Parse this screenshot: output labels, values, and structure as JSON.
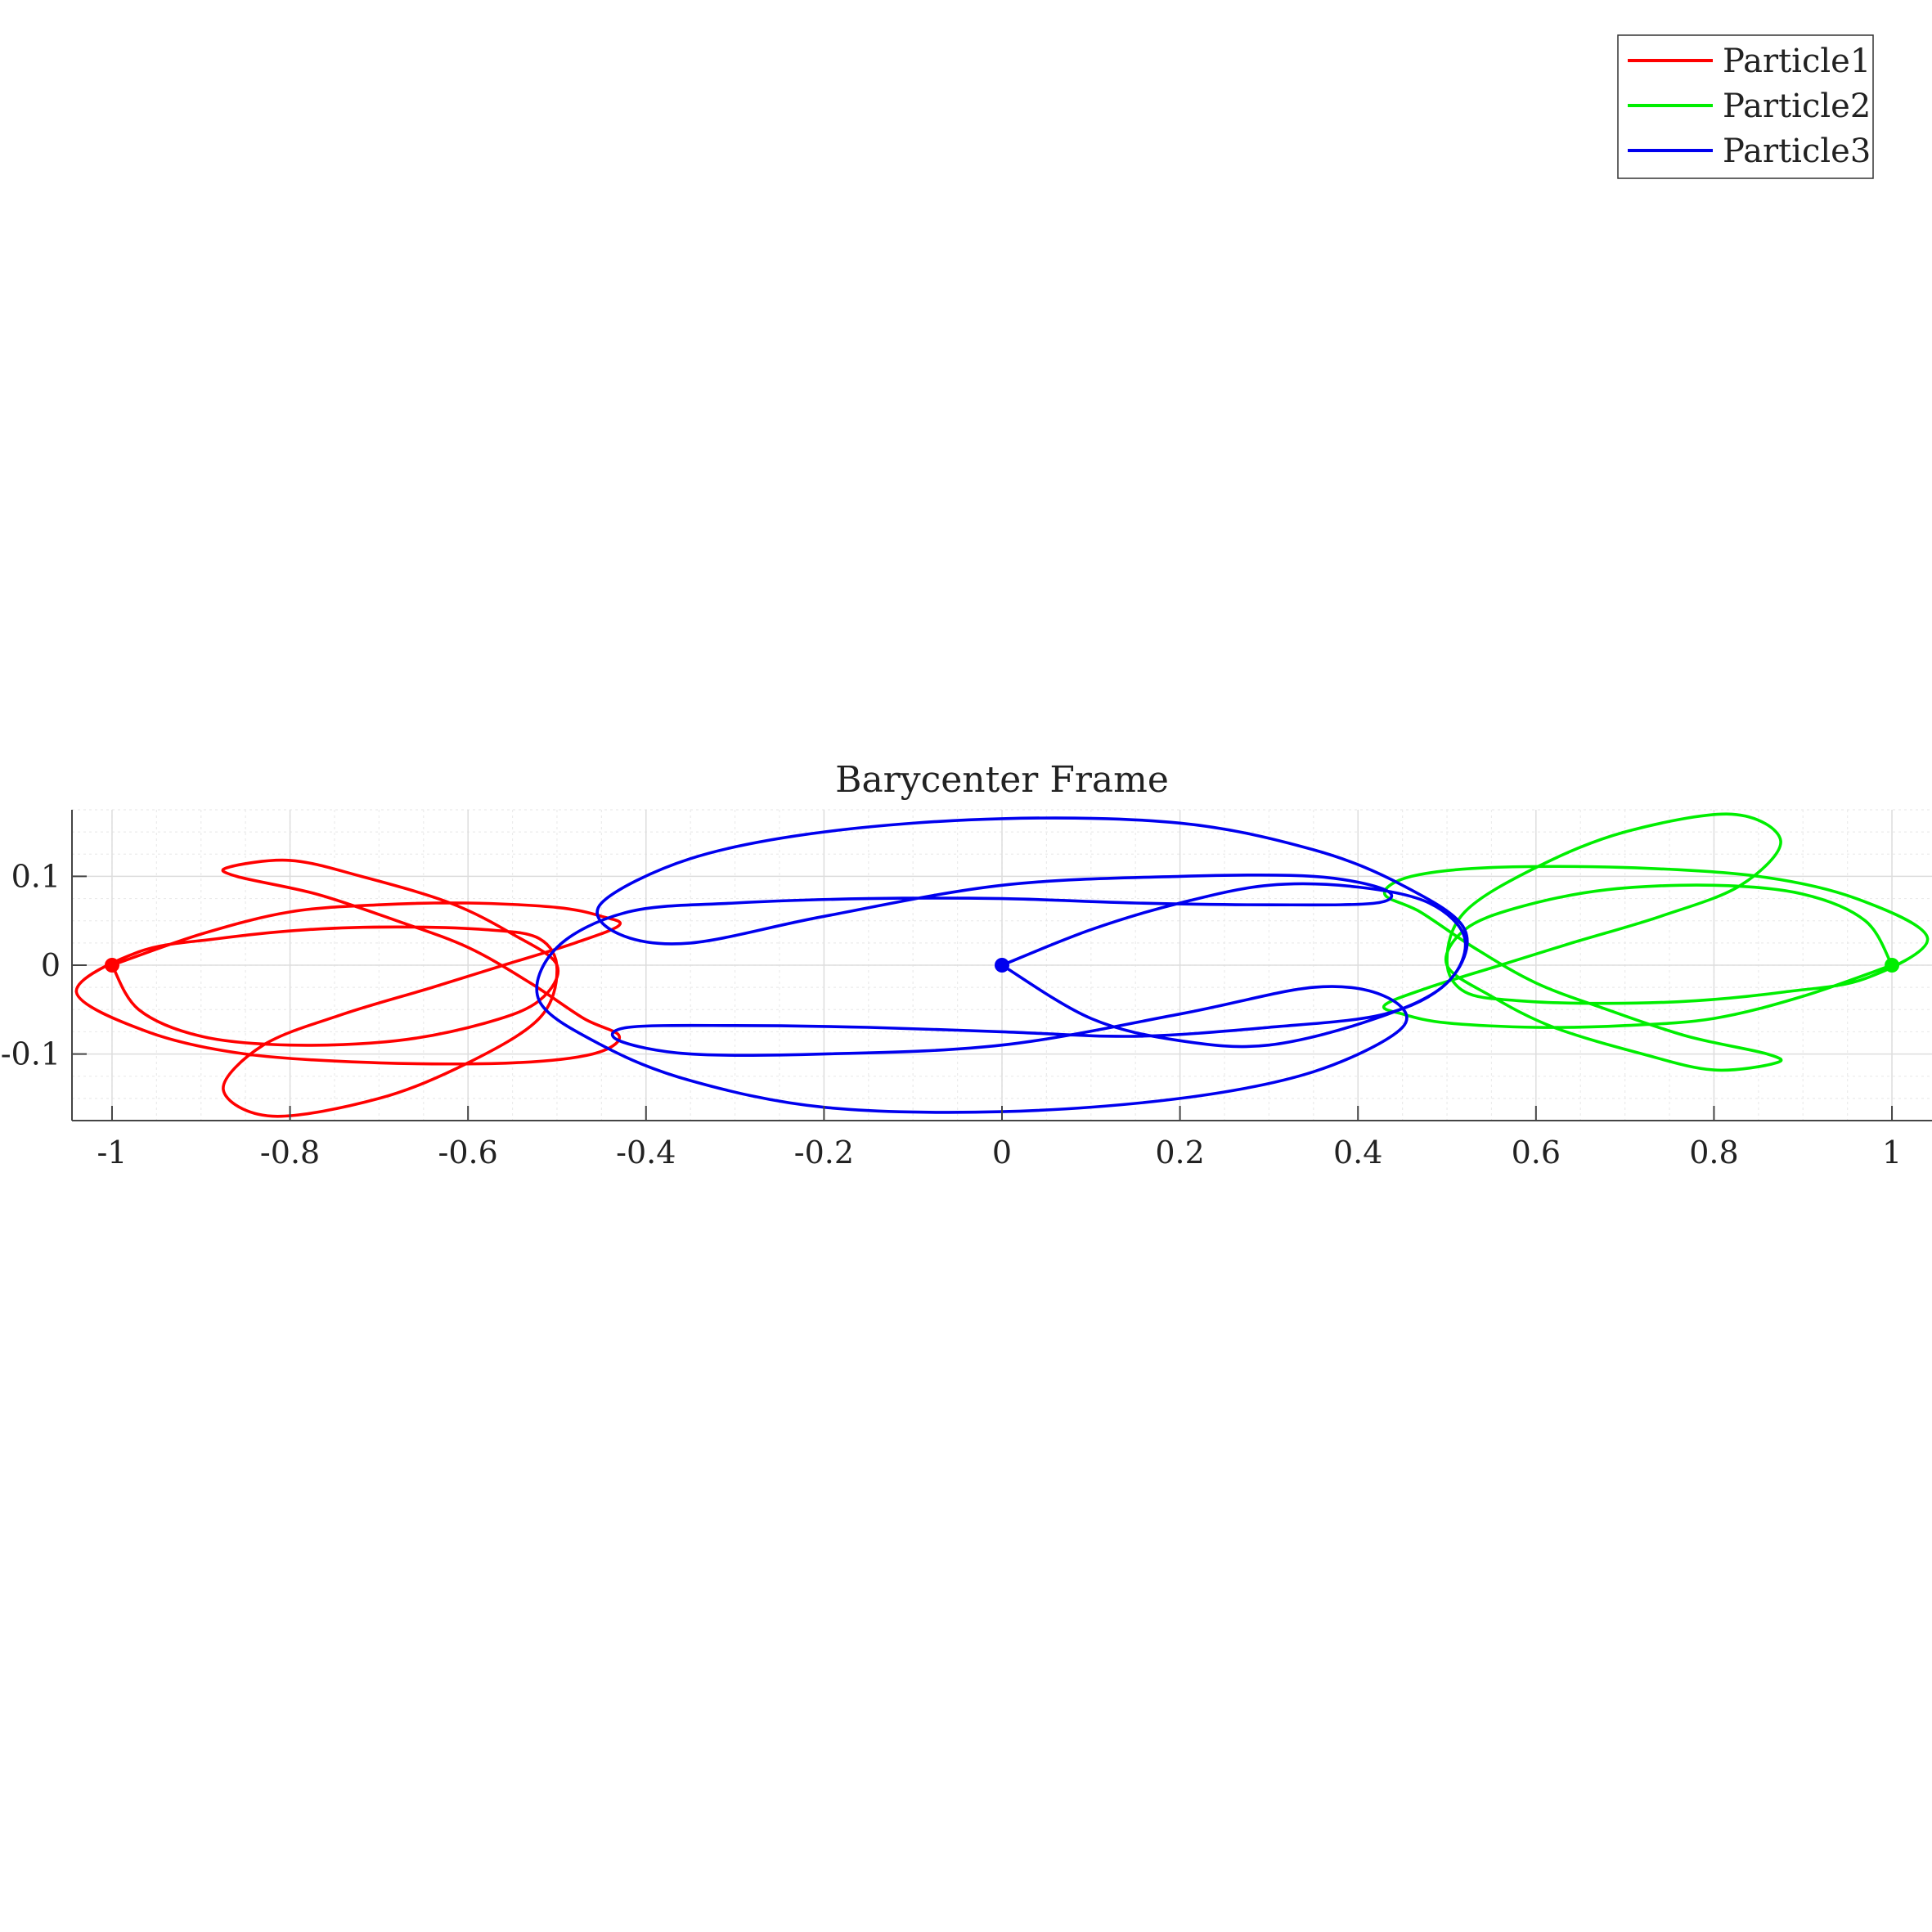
{
  "chart_data": {
    "type": "line",
    "title": "Barycenter Frame",
    "xlabel": "",
    "ylabel": "",
    "xlim": [
      -1.045,
      1.045
    ],
    "ylim": [
      -0.175,
      0.175
    ],
    "x_ticks": [
      -1,
      -0.8,
      -0.6,
      -0.4,
      -0.2,
      0,
      0.2,
      0.4,
      0.6,
      0.8,
      1
    ],
    "x_tick_labels": [
      "-1",
      "-0.8",
      "-0.6",
      "-0.4",
      "-0.2",
      "0",
      "0.2",
      "0.4",
      "0.6",
      "0.8",
      "1"
    ],
    "y_ticks": [
      -0.1,
      0,
      0.1
    ],
    "y_tick_labels": [
      "-0.1",
      "0",
      "0.1"
    ],
    "grid": true,
    "minor_grid": true,
    "legend_position": "top-right",
    "series": [
      {
        "name": "Particle1",
        "color": "#ff0000",
        "marker": {
          "x": -1,
          "y": 0
        },
        "points": [
          [
            -1.0,
            0.0
          ],
          [
            -0.9,
            0.035
          ],
          [
            -0.8,
            0.06
          ],
          [
            -0.7,
            0.068
          ],
          [
            -0.6,
            0.07
          ],
          [
            -0.5,
            0.065
          ],
          [
            -0.45,
            0.055
          ],
          [
            -0.43,
            0.045
          ],
          [
            -0.48,
            0.025
          ],
          [
            -0.56,
            0.0
          ],
          [
            -0.64,
            -0.025
          ],
          [
            -0.74,
            -0.055
          ],
          [
            -0.83,
            -0.09
          ],
          [
            -0.875,
            -0.14
          ],
          [
            -0.82,
            -0.17
          ],
          [
            -0.7,
            -0.15
          ],
          [
            -0.6,
            -0.11
          ],
          [
            -0.52,
            -0.06
          ],
          [
            -0.5,
            -0.005
          ],
          [
            -0.52,
            0.03
          ],
          [
            -0.58,
            0.04
          ],
          [
            -0.68,
            0.043
          ],
          [
            -0.78,
            0.04
          ],
          [
            -0.88,
            0.03
          ],
          [
            -0.97,
            0.015
          ],
          [
            -1.04,
            -0.03
          ],
          [
            -0.96,
            -0.075
          ],
          [
            -0.85,
            -0.1
          ],
          [
            -0.7,
            -0.11
          ],
          [
            -0.55,
            -0.11
          ],
          [
            -0.46,
            -0.1
          ],
          [
            -0.43,
            -0.08
          ],
          [
            -0.47,
            -0.06
          ],
          [
            -0.53,
            -0.02
          ],
          [
            -0.6,
            0.02
          ],
          [
            -0.68,
            0.05
          ],
          [
            -0.77,
            0.08
          ],
          [
            -0.86,
            0.1
          ],
          [
            -0.87,
            0.11
          ],
          [
            -0.8,
            0.118
          ],
          [
            -0.72,
            0.1
          ],
          [
            -0.62,
            0.07
          ],
          [
            -0.55,
            0.035
          ],
          [
            -0.5,
            0.0
          ],
          [
            -0.52,
            -0.04
          ],
          [
            -0.58,
            -0.065
          ],
          [
            -0.68,
            -0.085
          ],
          [
            -0.8,
            -0.09
          ],
          [
            -0.9,
            -0.08
          ],
          [
            -0.97,
            -0.05
          ],
          [
            -1.0,
            0.0
          ]
        ]
      },
      {
        "name": "Particle2",
        "color": "#00ee00",
        "marker": {
          "x": 1,
          "y": 0
        },
        "points": [
          [
            1.0,
            0.0
          ],
          [
            0.9,
            -0.035
          ],
          [
            0.8,
            -0.06
          ],
          [
            0.7,
            -0.068
          ],
          [
            0.6,
            -0.07
          ],
          [
            0.5,
            -0.065
          ],
          [
            0.45,
            -0.055
          ],
          [
            0.43,
            -0.045
          ],
          [
            0.48,
            -0.025
          ],
          [
            0.56,
            0.0
          ],
          [
            0.64,
            0.025
          ],
          [
            0.74,
            0.055
          ],
          [
            0.83,
            0.09
          ],
          [
            0.875,
            0.14
          ],
          [
            0.82,
            0.17
          ],
          [
            0.7,
            0.15
          ],
          [
            0.6,
            0.11
          ],
          [
            0.52,
            0.06
          ],
          [
            0.5,
            0.005
          ],
          [
            0.52,
            -0.03
          ],
          [
            0.58,
            -0.04
          ],
          [
            0.68,
            -0.043
          ],
          [
            0.78,
            -0.04
          ],
          [
            0.88,
            -0.03
          ],
          [
            0.97,
            -0.015
          ],
          [
            1.04,
            0.03
          ],
          [
            0.96,
            0.075
          ],
          [
            0.85,
            0.1
          ],
          [
            0.7,
            0.11
          ],
          [
            0.55,
            0.11
          ],
          [
            0.46,
            0.1
          ],
          [
            0.43,
            0.08
          ],
          [
            0.47,
            0.06
          ],
          [
            0.53,
            0.02
          ],
          [
            0.6,
            -0.02
          ],
          [
            0.68,
            -0.05
          ],
          [
            0.77,
            -0.08
          ],
          [
            0.86,
            -0.1
          ],
          [
            0.87,
            -0.11
          ],
          [
            0.8,
            -0.118
          ],
          [
            0.72,
            -0.1
          ],
          [
            0.62,
            -0.07
          ],
          [
            0.55,
            -0.035
          ],
          [
            0.5,
            0.0
          ],
          [
            0.52,
            0.04
          ],
          [
            0.58,
            0.065
          ],
          [
            0.68,
            0.085
          ],
          [
            0.8,
            0.09
          ],
          [
            0.9,
            0.08
          ],
          [
            0.97,
            0.05
          ],
          [
            1.0,
            0.0
          ]
        ]
      },
      {
        "name": "Particle3",
        "color": "#0000ee",
        "marker": {
          "x": 0,
          "y": 0
        },
        "points": [
          [
            0.0,
            0.0
          ],
          [
            0.1,
            0.04
          ],
          [
            0.2,
            0.07
          ],
          [
            0.3,
            0.09
          ],
          [
            0.4,
            0.088
          ],
          [
            0.48,
            0.07
          ],
          [
            0.52,
            0.03
          ],
          [
            0.5,
            -0.02
          ],
          [
            0.43,
            -0.055
          ],
          [
            0.3,
            -0.07
          ],
          [
            0.15,
            -0.08
          ],
          [
            0.0,
            -0.075
          ],
          [
            -0.15,
            -0.07
          ],
          [
            -0.3,
            -0.068
          ],
          [
            -0.42,
            -0.07
          ],
          [
            -0.43,
            -0.085
          ],
          [
            -0.35,
            -0.1
          ],
          [
            -0.2,
            -0.1
          ],
          [
            0.0,
            -0.09
          ],
          [
            0.2,
            -0.055
          ],
          [
            0.35,
            -0.025
          ],
          [
            0.43,
            -0.035
          ],
          [
            0.45,
            -0.07
          ],
          [
            0.35,
            -0.12
          ],
          [
            0.2,
            -0.15
          ],
          [
            0.0,
            -0.165
          ],
          [
            -0.2,
            -0.16
          ],
          [
            -0.35,
            -0.13
          ],
          [
            -0.45,
            -0.09
          ],
          [
            -0.52,
            -0.04
          ],
          [
            -0.5,
            0.02
          ],
          [
            -0.42,
            0.06
          ],
          [
            -0.3,
            0.07
          ],
          [
            -0.15,
            0.075
          ],
          [
            0.0,
            0.075
          ],
          [
            0.15,
            0.07
          ],
          [
            0.3,
            0.068
          ],
          [
            0.42,
            0.07
          ],
          [
            0.43,
            0.085
          ],
          [
            0.35,
            0.1
          ],
          [
            0.2,
            0.1
          ],
          [
            0.0,
            0.09
          ],
          [
            -0.2,
            0.055
          ],
          [
            -0.35,
            0.025
          ],
          [
            -0.43,
            0.035
          ],
          [
            -0.45,
            0.07
          ],
          [
            -0.35,
            0.12
          ],
          [
            -0.2,
            0.15
          ],
          [
            0.0,
            0.165
          ],
          [
            0.2,
            0.16
          ],
          [
            0.35,
            0.13
          ],
          [
            0.45,
            0.09
          ],
          [
            0.52,
            0.04
          ],
          [
            0.5,
            -0.02
          ],
          [
            0.42,
            -0.06
          ],
          [
            0.3,
            -0.09
          ],
          [
            0.2,
            -0.085
          ],
          [
            0.1,
            -0.06
          ],
          [
            0.0,
            0.0
          ]
        ]
      }
    ]
  }
}
